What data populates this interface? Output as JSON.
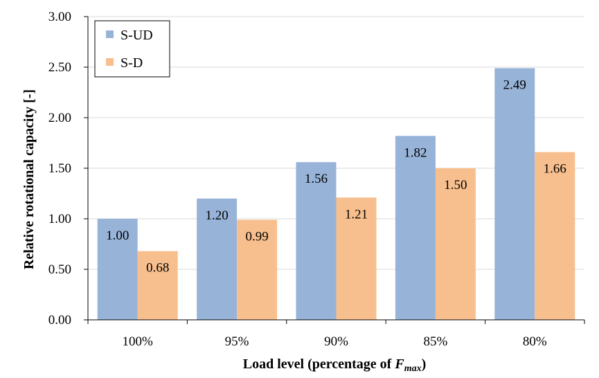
{
  "chart_data": {
    "type": "bar",
    "categories": [
      "100%",
      "95%",
      "90%",
      "85%",
      "80%"
    ],
    "series": [
      {
        "name": "S-UD",
        "color": "#97b3d8",
        "values": [
          1.0,
          1.2,
          1.56,
          1.82,
          2.49
        ],
        "labels": [
          "1.00",
          "1.20",
          "1.56",
          "1.82",
          "2.49"
        ]
      },
      {
        "name": "S-D",
        "color": "#f8bf8e",
        "values": [
          0.68,
          0.99,
          1.21,
          1.5,
          1.66
        ],
        "labels": [
          "0.68",
          "0.99",
          "1.21",
          "1.50",
          "1.66"
        ]
      }
    ],
    "xlabel_prefix": "Load level (percentage of ",
    "xlabel_var": "F",
    "xlabel_sub": "max",
    "xlabel_suffix": ")",
    "ylabel": "Relative rotational capacity  [-]",
    "ylim": [
      0,
      3
    ],
    "yticks": [
      "0.00",
      "0.50",
      "1.00",
      "1.50",
      "2.00",
      "2.50",
      "3.00"
    ],
    "grid": true,
    "legend_position": "top-left"
  }
}
